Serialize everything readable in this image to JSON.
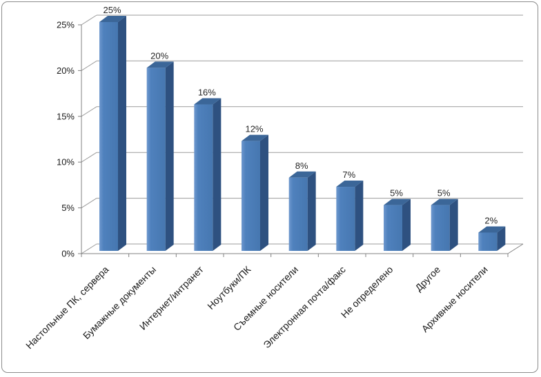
{
  "frame": {
    "background": "#ffffff",
    "border_color": "#8b8b8b"
  },
  "chart_data": {
    "type": "bar",
    "variant": "3d-column",
    "title": "",
    "xlabel": "",
    "ylabel": "",
    "categories": [
      "Настольные ПК, сервера",
      "Бумажные документы",
      "Интернет/интранет",
      "Ноутбуки/ПК",
      "Съемные носители",
      "Электронная почта/факс",
      "Не определено",
      "Другое",
      "Архивные носители"
    ],
    "values": [
      25,
      20,
      16,
      12,
      8,
      7,
      5,
      5,
      2
    ],
    "data_labels": [
      "25%",
      "20%",
      "16%",
      "12%",
      "8%",
      "7%",
      "5%",
      "5%",
      "2%"
    ],
    "ylim": [
      0,
      25
    ],
    "y_ticks": [
      {
        "value": 0,
        "label": "0%"
      },
      {
        "value": 5,
        "label": "5%"
      },
      {
        "value": 10,
        "label": "10%"
      },
      {
        "value": 15,
        "label": "15%"
      },
      {
        "value": 20,
        "label": "20%"
      },
      {
        "value": 25,
        "label": "25%"
      }
    ],
    "grid": true,
    "legend": false,
    "colors": {
      "bar_front": "#4f81bd",
      "bar_front_light": "#6e98ce",
      "bar_front_dark": "#4677b0",
      "bar_side": "#2e5180",
      "bar_top": "#3b6698",
      "gridline": "#9b9b9b",
      "axis": "#808080",
      "axis_text": "#1a1a1a",
      "label_text": "#262626"
    }
  }
}
